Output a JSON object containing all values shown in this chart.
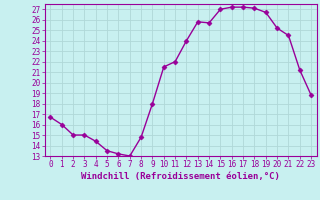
{
  "x": [
    0,
    1,
    2,
    3,
    4,
    5,
    6,
    7,
    8,
    9,
    10,
    11,
    12,
    13,
    14,
    15,
    16,
    17,
    18,
    19,
    20,
    21,
    22,
    23
  ],
  "y": [
    16.7,
    16.0,
    15.0,
    15.0,
    14.4,
    13.5,
    13.2,
    13.0,
    14.8,
    18.0,
    21.5,
    22.0,
    24.0,
    25.8,
    25.7,
    27.0,
    27.2,
    27.2,
    27.1,
    26.7,
    25.2,
    24.5,
    21.2,
    18.8
  ],
  "line_color": "#990099",
  "marker": "D",
  "markersize": 2.5,
  "linewidth": 1.0,
  "background_color": "#c8f0f0",
  "grid_color": "#b0d8d8",
  "xlabel": "Windchill (Refroidissement éolien,°C)",
  "xlabel_fontsize": 6.5,
  "tick_color": "#990099",
  "tick_fontsize": 5.5,
  "xlim": [
    -0.5,
    23.5
  ],
  "ylim": [
    13,
    27.5
  ],
  "yticks": [
    13,
    14,
    15,
    16,
    17,
    18,
    19,
    20,
    21,
    22,
    23,
    24,
    25,
    26,
    27
  ],
  "xticks": [
    0,
    1,
    2,
    3,
    4,
    5,
    6,
    7,
    8,
    9,
    10,
    11,
    12,
    13,
    14,
    15,
    16,
    17,
    18,
    19,
    20,
    21,
    22,
    23
  ]
}
